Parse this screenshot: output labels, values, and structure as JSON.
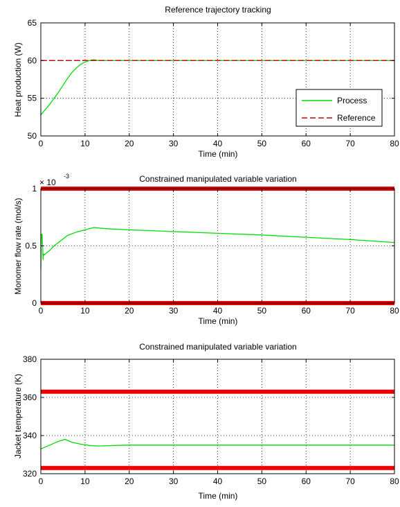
{
  "chart_data": [
    {
      "type": "line",
      "title": "Reference trajectory tracking",
      "xlabel": "Time (min)",
      "ylabel": "Heat production (W)",
      "xlim": [
        0,
        80
      ],
      "ylim": [
        50,
        65
      ],
      "xticks": [
        0,
        10,
        20,
        30,
        40,
        50,
        60,
        70,
        80
      ],
      "yticks": [
        50,
        55,
        60,
        65
      ],
      "grid": true,
      "legend": "lower-right",
      "series": [
        {
          "name": "Process",
          "color": "#00dd00",
          "style": "solid",
          "x": [
            0,
            1,
            2,
            3,
            4,
            5,
            6,
            7,
            8,
            9,
            10,
            11,
            12,
            13,
            15,
            20,
            30,
            40,
            50,
            60,
            70,
            80
          ],
          "y": [
            52.8,
            53.5,
            54.2,
            55.0,
            55.8,
            56.7,
            57.6,
            58.4,
            59.0,
            59.5,
            59.8,
            60.0,
            60.1,
            60.0,
            60.0,
            60.0,
            60.0,
            60.0,
            60.0,
            60.0,
            60.0,
            60.0
          ]
        },
        {
          "name": "Reference",
          "color": "#cc0000",
          "style": "dashed",
          "x": [
            0,
            80
          ],
          "y": [
            60,
            60
          ]
        }
      ]
    },
    {
      "type": "line",
      "title": "Constrained manipulated variable variation",
      "xlabel": "Time (min)",
      "ylabel": "Monomer flow rate (mol/s)",
      "multiplier": "× 10",
      "multiplier_exp": "-3",
      "xlim": [
        0,
        80
      ],
      "ylim": [
        0,
        1
      ],
      "xticks": [
        0,
        10,
        20,
        30,
        40,
        50,
        60,
        70,
        80
      ],
      "yticks": [
        0,
        0.5,
        1
      ],
      "grid": true,
      "series": [
        {
          "color": "#00dd00",
          "style": "solid",
          "x": [
            0,
            0.1,
            0.3,
            0.5,
            0.6,
            0.8,
            1,
            2,
            3,
            4,
            5,
            6,
            8,
            10,
            12,
            15,
            20,
            30,
            40,
            50,
            60,
            70,
            80
          ],
          "y": [
            0.3,
            0.6,
            0.6,
            0.38,
            0.43,
            0.42,
            0.43,
            0.46,
            0.5,
            0.53,
            0.56,
            0.59,
            0.62,
            0.64,
            0.66,
            0.65,
            0.64,
            0.625,
            0.61,
            0.595,
            0.575,
            0.555,
            0.53
          ]
        },
        {
          "color": "#ee0000",
          "style": "bound",
          "x": [
            0,
            80
          ],
          "y": [
            1,
            1
          ]
        },
        {
          "color": "#ee0000",
          "style": "bound",
          "x": [
            0,
            80
          ],
          "y": [
            0,
            0
          ]
        }
      ]
    },
    {
      "type": "line",
      "title": "Constrained manipulated variable variation",
      "xlabel": "Time (min)",
      "ylabel": "Jacket temperature (K)",
      "xlim": [
        0,
        80
      ],
      "ylim": [
        320,
        380
      ],
      "xticks": [
        0,
        10,
        20,
        30,
        40,
        50,
        60,
        70,
        80
      ],
      "yticks": [
        320,
        340,
        360,
        380
      ],
      "grid": true,
      "series": [
        {
          "color": "#00dd00",
          "style": "solid",
          "x": [
            0,
            2,
            4,
            5.5,
            7,
            9,
            11,
            13,
            15,
            20,
            30,
            40,
            50,
            60,
            70,
            80
          ],
          "y": [
            333,
            335,
            337,
            338,
            336.5,
            335.5,
            334.8,
            334.5,
            334.7,
            335,
            335,
            335,
            335,
            335,
            335,
            335
          ]
        },
        {
          "color": "#ee0000",
          "style": "bound",
          "x": [
            0,
            80
          ],
          "y": [
            363,
            363
          ]
        },
        {
          "color": "#ee0000",
          "style": "bound",
          "x": [
            0,
            80
          ],
          "y": [
            323,
            323
          ]
        }
      ]
    }
  ]
}
